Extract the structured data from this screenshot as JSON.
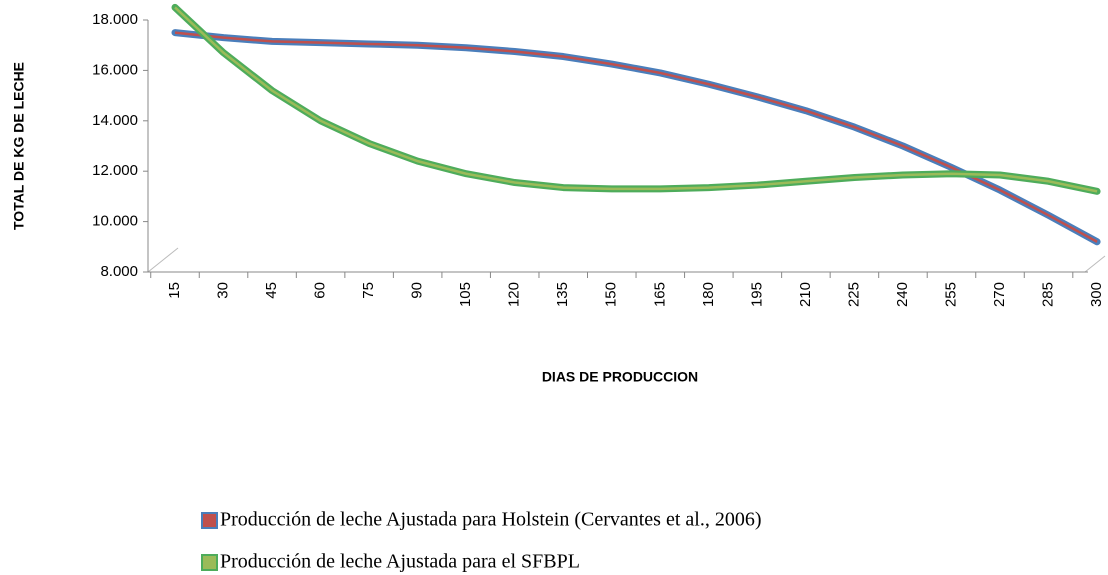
{
  "chart_data": {
    "type": "line",
    "y_label": "TOTAL DE KG DE LECHE",
    "x_label": "DIAS DE PRODUCCION",
    "categories": [
      "15",
      "30",
      "45",
      "60",
      "75",
      "90",
      "105",
      "120",
      "135",
      "150",
      "165",
      "180",
      "195",
      "210",
      "225",
      "240",
      "255",
      "270",
      "285",
      "300"
    ],
    "series": [
      {
        "name": "Producción de leche Ajustada para Holstein (Cervantes et al., 2006)",
        "color": "#4a7ebb",
        "inner_color": "#c0504d",
        "values": [
          17500,
          17300,
          17150,
          17100,
          17050,
          17000,
          16900,
          16750,
          16550,
          16250,
          15900,
          15450,
          14950,
          14400,
          13750,
          13000,
          12150,
          11250,
          10250,
          9200
        ]
      },
      {
        "name": "Producción de leche Ajustada para el SFBPL",
        "color": "#4eac5b",
        "inner_color": "#9bbb59",
        "values": [
          18500,
          16700,
          15200,
          14000,
          13100,
          12400,
          11900,
          11550,
          11350,
          11300,
          11300,
          11350,
          11450,
          11600,
          11750,
          11850,
          11900,
          11850,
          11600,
          11200
        ]
      }
    ],
    "ylim": [
      8000,
      18000
    ],
    "yticks": [
      {
        "value": 8000,
        "label": "8.000"
      },
      {
        "value": 10000,
        "label": "10.000"
      },
      {
        "value": 12000,
        "label": "12.000"
      },
      {
        "value": 14000,
        "label": "14.000"
      },
      {
        "value": 16000,
        "label": "16.000"
      },
      {
        "value": 18000,
        "label": "18.000"
      }
    ]
  }
}
